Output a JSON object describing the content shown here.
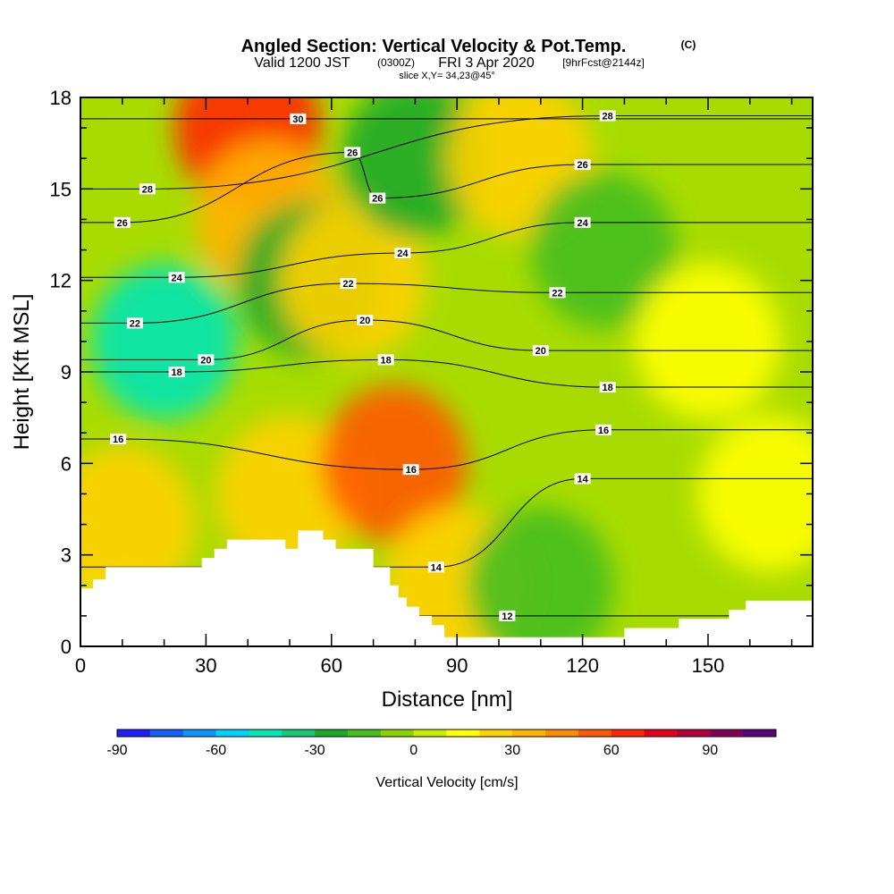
{
  "chart_data": {
    "type": "heatmap",
    "title": "Angled Section: Vertical Velocity & Pot.Temp.",
    "title_mark": "(C)",
    "subtitle_parts": [
      "Valid 1200 JST",
      "(0300Z)",
      "FRI 3 Apr 2020",
      "[9hrFcst@2144z]"
    ],
    "slice_label": "slice X,Y= 34,23@45°",
    "xlabel": "Distance [nm]",
    "ylabel": "Height [Kft MSL]",
    "xlim": [
      0,
      175
    ],
    "ylim": [
      0,
      18
    ],
    "x_ticks": [
      0,
      30,
      60,
      90,
      120,
      150
    ],
    "y_ticks": [
      0,
      3,
      6,
      9,
      12,
      15,
      18
    ],
    "colorbar": {
      "label": "Vertical Velocity [cm/s]",
      "tick_values": [
        -90,
        -60,
        -30,
        0,
        30,
        60,
        90
      ],
      "levels": [
        -90,
        -80,
        -70,
        -60,
        -50,
        -40,
        -30,
        -20,
        -10,
        0,
        10,
        20,
        30,
        40,
        50,
        60,
        70,
        80,
        90,
        100
      ],
      "colors": [
        "#1e1eff",
        "#1460ff",
        "#0a96ff",
        "#00d2ff",
        "#00e6b4",
        "#14c878",
        "#1eaa28",
        "#46be1e",
        "#8cd200",
        "#c8ef00",
        "#ffff00",
        "#ffd200",
        "#ffb400",
        "#ff8c00",
        "#ff5a00",
        "#ff2800",
        "#e6001e",
        "#b4003c",
        "#82005a",
        "#5a0078"
      ]
    },
    "terrain": [
      [
        0,
        1.9
      ],
      [
        3,
        1.9
      ],
      [
        3,
        2.2
      ],
      [
        6,
        2.2
      ],
      [
        6,
        2.6
      ],
      [
        29,
        2.6
      ],
      [
        29,
        2.9
      ],
      [
        32,
        2.9
      ],
      [
        32,
        3.2
      ],
      [
        35,
        3.2
      ],
      [
        35,
        3.5
      ],
      [
        49,
        3.5
      ],
      [
        49,
        3.2
      ],
      [
        52,
        3.2
      ],
      [
        52,
        3.8
      ],
      [
        58,
        3.8
      ],
      [
        58,
        3.5
      ],
      [
        61,
        3.5
      ],
      [
        61,
        3.2
      ],
      [
        70,
        3.2
      ],
      [
        70,
        2.6
      ],
      [
        74,
        2.6
      ],
      [
        74,
        2.0
      ],
      [
        76,
        2.0
      ],
      [
        76,
        1.6
      ],
      [
        78,
        1.6
      ],
      [
        78,
        1.3
      ],
      [
        81,
        1.3
      ],
      [
        81,
        1.0
      ],
      [
        84,
        1.0
      ],
      [
        84,
        0.7
      ],
      [
        87,
        0.7
      ],
      [
        87,
        0.3
      ],
      [
        130,
        0.3
      ],
      [
        130,
        0.6
      ],
      [
        143,
        0.6
      ],
      [
        143,
        0.9
      ],
      [
        155,
        0.9
      ],
      [
        155,
        1.2
      ],
      [
        159,
        1.2
      ],
      [
        159,
        1.5
      ],
      [
        175,
        1.5
      ]
    ],
    "velocity_cells": [
      {
        "x": 5,
        "y": 0,
        "value": 5
      },
      {
        "x": 10,
        "y": 4,
        "value": 25
      },
      {
        "x": 20,
        "y": 10,
        "value": -45
      },
      {
        "x": 40,
        "y": 17,
        "value": 65
      },
      {
        "x": 45,
        "y": 14,
        "value": 30
      },
      {
        "x": 50,
        "y": 5,
        "value": 25
      },
      {
        "x": 55,
        "y": 12,
        "value": -25
      },
      {
        "x": 65,
        "y": 12,
        "value": 20
      },
      {
        "x": 75,
        "y": 6,
        "value": 50
      },
      {
        "x": 80,
        "y": 16,
        "value": -25
      },
      {
        "x": 90,
        "y": 2,
        "value": 20
      },
      {
        "x": 105,
        "y": 16,
        "value": 25
      },
      {
        "x": 110,
        "y": 2,
        "value": -15
      },
      {
        "x": 125,
        "y": 13,
        "value": -15
      },
      {
        "x": 150,
        "y": 10,
        "value": 15
      },
      {
        "x": 165,
        "y": 5,
        "value": 10
      }
    ],
    "theta_labels": [
      {
        "x": 52,
        "y": 17.3,
        "text": "30"
      },
      {
        "x": 16,
        "y": 15.0,
        "text": "28"
      },
      {
        "x": 126,
        "y": 17.4,
        "text": "28"
      },
      {
        "x": 65,
        "y": 16.2,
        "text": "26"
      },
      {
        "x": 10,
        "y": 13.9,
        "text": "26"
      },
      {
        "x": 71,
        "y": 14.7,
        "text": "26"
      },
      {
        "x": 120,
        "y": 15.8,
        "text": "26"
      },
      {
        "x": 77,
        "y": 12.9,
        "text": "24"
      },
      {
        "x": 120,
        "y": 13.9,
        "text": "24"
      },
      {
        "x": 23,
        "y": 12.1,
        "text": "24"
      },
      {
        "x": 64,
        "y": 11.9,
        "text": "22"
      },
      {
        "x": 13,
        "y": 10.6,
        "text": "22"
      },
      {
        "x": 114,
        "y": 11.6,
        "text": "22"
      },
      {
        "x": 68,
        "y": 10.7,
        "text": "20"
      },
      {
        "x": 30,
        "y": 9.4,
        "text": "20"
      },
      {
        "x": 110,
        "y": 9.7,
        "text": "20"
      },
      {
        "x": 73,
        "y": 9.4,
        "text": "18"
      },
      {
        "x": 23,
        "y": 9.0,
        "text": "18"
      },
      {
        "x": 126,
        "y": 8.5,
        "text": "18"
      },
      {
        "x": 9,
        "y": 6.8,
        "text": "16"
      },
      {
        "x": 125,
        "y": 7.1,
        "text": "16"
      },
      {
        "x": 79,
        "y": 5.8,
        "text": "16"
      },
      {
        "x": 120,
        "y": 5.5,
        "text": "14"
      },
      {
        "x": 85,
        "y": 2.6,
        "text": "14"
      },
      {
        "x": 102,
        "y": 1.0,
        "text": "12"
      }
    ]
  }
}
